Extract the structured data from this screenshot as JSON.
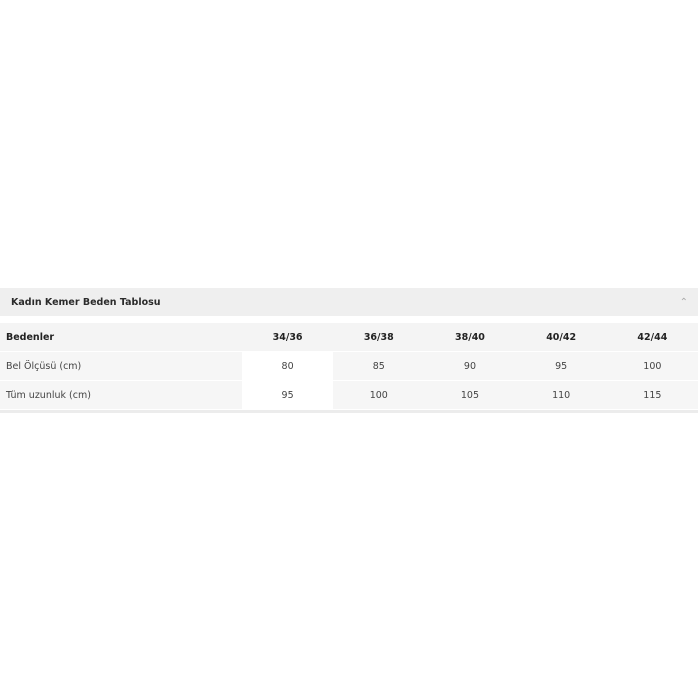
{
  "accordion": {
    "title": "Kadın Kemer Beden Tablosu",
    "icon": "chevron-up-icon",
    "expanded": true
  },
  "table": {
    "header": [
      "Bedenler",
      "34/36",
      "36/38",
      "38/40",
      "40/42",
      "42/44"
    ],
    "rows": [
      [
        "Bel Ölçüsü (cm)",
        "80",
        "85",
        "90",
        "95",
        "100"
      ],
      [
        "Tüm uzunluk (cm)",
        "95",
        "100",
        "105",
        "110",
        "115"
      ]
    ]
  }
}
